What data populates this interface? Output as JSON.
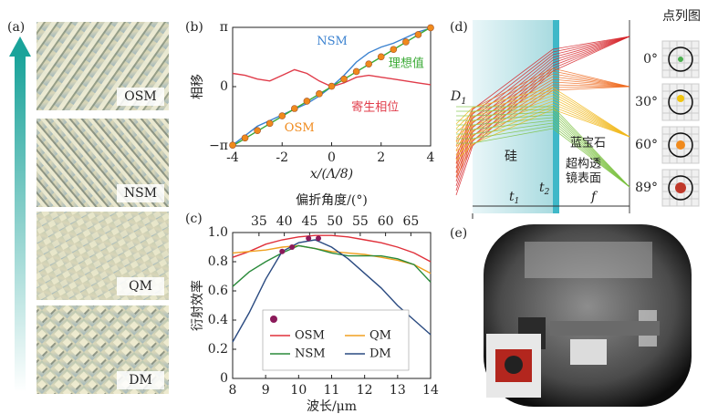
{
  "panel_a": {
    "label": "(a)",
    "tiles": [
      "OSM",
      "NSM",
      "QM",
      "DM"
    ]
  },
  "chart_data": [
    {
      "type": "line",
      "label": "(b)",
      "ylabel": "相移",
      "xlabel": "x/(Λ/8)",
      "x": [
        -4,
        -3.5,
        -3,
        -2.5,
        -2,
        -1.5,
        -1,
        -0.5,
        0,
        0.5,
        1,
        1.5,
        2,
        2.5,
        3,
        3.5,
        4
      ],
      "xlim": [
        -4,
        4
      ],
      "xticks": [
        -4,
        -2,
        0,
        2,
        4
      ],
      "ylim": [
        -3.14159,
        3.14159
      ],
      "yticks": [
        {
          "value": -3.14159,
          "label": "−π"
        },
        0,
        {
          "value": 3.14159,
          "label": "π"
        }
      ],
      "series": [
        {
          "name": "NSM",
          "color": "#3b82d0",
          "values": [
            -3.1,
            -2.6,
            -2.1,
            -1.8,
            -1.5,
            -1.2,
            -0.9,
            -0.5,
            0,
            0.6,
            1.3,
            1.8,
            2.1,
            2.3,
            2.6,
            2.9,
            3.1
          ]
        },
        {
          "name": "寄生相位",
          "color": "#e03c4a",
          "values": [
            0.7,
            0.6,
            0.4,
            0.3,
            0.6,
            0.9,
            0.7,
            0.3,
            0,
            0.2,
            0.5,
            0.6,
            0.5,
            0.4,
            0.3,
            0.2,
            0.1
          ]
        },
        {
          "name": "理想值",
          "color": "#3aaa35",
          "values": [
            -3.14,
            -2.75,
            -2.36,
            -1.96,
            -1.57,
            -1.18,
            -0.79,
            -0.39,
            0,
            0.39,
            0.79,
            1.18,
            1.57,
            1.96,
            2.36,
            2.75,
            3.14
          ]
        },
        {
          "name": "OSM",
          "color": "#f08a1c",
          "mode": "markers",
          "values": [
            -3.1,
            -2.72,
            -2.33,
            -1.95,
            -1.55,
            -1.16,
            -0.77,
            -0.38,
            0.02,
            0.4,
            0.8,
            1.2,
            1.58,
            1.97,
            2.37,
            2.76,
            3.12
          ]
        }
      ]
    },
    {
      "type": "line",
      "label": "(c)",
      "ylabel": "衍射效率",
      "xlabel": "波长/μm",
      "x2label": "偏折角度/(°)",
      "x": [
        8,
        8.5,
        9,
        9.5,
        10,
        10.5,
        11,
        11.5,
        12,
        12.5,
        13,
        13.5,
        14
      ],
      "xlim": [
        8,
        14
      ],
      "xticks": [
        8,
        9,
        10,
        11,
        12,
        13,
        14
      ],
      "x2lim": [
        29.8,
        68.9
      ],
      "x2ticks": [
        35,
        40,
        45,
        50,
        55,
        60,
        65
      ],
      "ylim": [
        0,
        1
      ],
      "yticks": [
        0,
        0.2,
        0.4,
        0.6,
        0.8,
        {
          "value": 1,
          "label": "1.0"
        }
      ],
      "legend": "lower center",
      "series": [
        {
          "name": "OSM",
          "color": "#e0303a",
          "values": [
            0.83,
            0.87,
            0.92,
            0.95,
            0.97,
            0.98,
            0.98,
            0.97,
            0.95,
            0.93,
            0.9,
            0.86,
            0.8
          ]
        },
        {
          "name": "QM",
          "color": "#f0a020",
          "values": [
            0.86,
            0.87,
            0.88,
            0.9,
            0.91,
            0.89,
            0.87,
            0.86,
            0.85,
            0.83,
            0.81,
            0.78,
            0.72
          ]
        },
        {
          "name": "NSM",
          "color": "#2a8a3a",
          "values": [
            0.63,
            0.73,
            0.8,
            0.86,
            0.91,
            0.89,
            0.86,
            0.84,
            0.84,
            0.84,
            0.82,
            0.78,
            0.66
          ]
        },
        {
          "name": "DM",
          "color": "#2a4a80",
          "values": [
            0.25,
            0.45,
            0.68,
            0.87,
            0.93,
            0.95,
            0.9,
            0.82,
            0.72,
            0.62,
            0.5,
            0.4,
            0.3
          ]
        },
        {
          "color": "#8b1a5a",
          "mode": "markers",
          "x": [
            9.5,
            9.8,
            10.3,
            10.6
          ],
          "values": [
            0.87,
            0.9,
            0.96,
            0.96
          ]
        }
      ]
    }
  ],
  "panel_d": {
    "label": "(d)",
    "D": "D",
    "D_sub": "1",
    "silicon": "硅",
    "sapphire": "蓝宝石",
    "surface_line1": "超构透",
    "surface_line2": "镜表面",
    "t": "t",
    "t1_sub": "1",
    "t2_sub": "2",
    "f": "f",
    "spot_title": "点列图",
    "angles": [
      "0°",
      "30°",
      "60°",
      "89°"
    ]
  },
  "panel_e": {
    "label": "(e)"
  }
}
